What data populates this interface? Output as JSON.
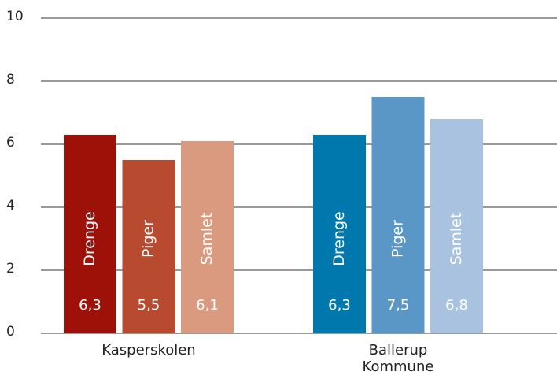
{
  "chart_data": {
    "type": "bar",
    "categories": [
      "Kasperskolen",
      "Ballerup Kommune"
    ],
    "series": [
      {
        "name": "Drenge",
        "colors": [
          "#9e1108",
          "#0078ae"
        ],
        "values": [
          6.3,
          6.3
        ],
        "value_labels": [
          "6,3",
          "6,3"
        ]
      },
      {
        "name": "Piger",
        "colors": [
          "#b84a30",
          "#5a96c6"
        ],
        "values": [
          5.5,
          7.5
        ],
        "value_labels": [
          "5,5",
          "7,5"
        ]
      },
      {
        "name": "Samlet",
        "colors": [
          "#d99a80",
          "#a8c2e0"
        ],
        "values": [
          6.1,
          6.8
        ],
        "value_labels": [
          "6,1",
          "6,8"
        ]
      }
    ],
    "ylim": [
      0,
      10
    ],
    "yticks": [
      0,
      2,
      4,
      6,
      8,
      10
    ],
    "grid": true
  }
}
